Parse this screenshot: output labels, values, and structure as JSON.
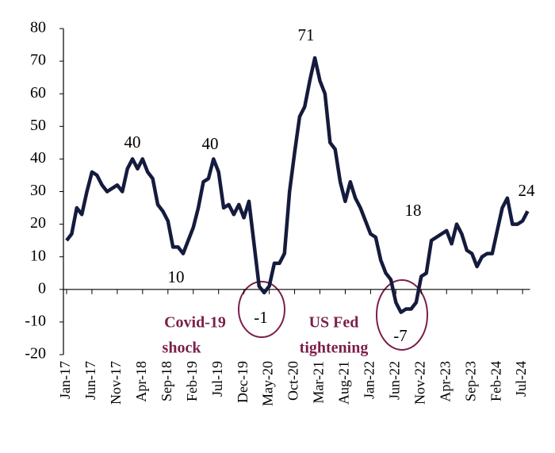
{
  "chart_data": {
    "type": "line",
    "categories": [
      "Jan-17",
      null,
      null,
      null,
      null,
      "Jun-17",
      null,
      null,
      null,
      null,
      "Nov-17",
      null,
      null,
      null,
      null,
      "Apr-18",
      null,
      null,
      null,
      null,
      "Sep-18",
      null,
      null,
      null,
      null,
      "Feb-19",
      null,
      null,
      null,
      null,
      "Jul-19",
      null,
      null,
      null,
      null,
      "Dec-19",
      null,
      null,
      null,
      null,
      "May-20",
      null,
      null,
      null,
      null,
      "Oct-20",
      null,
      null,
      null,
      null,
      "Mar-21",
      null,
      null,
      null,
      null,
      "Aug-21",
      null,
      null,
      null,
      null,
      "Jan-22",
      null,
      null,
      null,
      null,
      "Jun-22",
      null,
      null,
      null,
      null,
      "Nov-22",
      null,
      null,
      null,
      null,
      "Apr-23",
      null,
      null,
      null,
      null,
      "Sep-23",
      null,
      null,
      null,
      null,
      "Feb-24",
      null,
      null,
      null,
      null,
      "Jul-24",
      null
    ],
    "series": [
      {
        "color": "#141b3d",
        "values": [
          15,
          17,
          25,
          23,
          30,
          36,
          35,
          32,
          30,
          31,
          32,
          30,
          37,
          40,
          37,
          40,
          36,
          34,
          26,
          24,
          21,
          13,
          13,
          11,
          15,
          19,
          25,
          33,
          34,
          40,
          36,
          25,
          26,
          23,
          26,
          22,
          27,
          14,
          1,
          -1,
          1,
          8,
          8,
          11,
          30,
          42,
          53,
          56,
          64,
          71,
          64,
          60,
          45,
          43,
          33,
          27,
          33,
          28,
          25,
          21,
          17,
          16,
          9,
          5,
          3,
          -4,
          -7,
          -6,
          -6,
          -4,
          4,
          5,
          15,
          16,
          17,
          18,
          14,
          20,
          17,
          12,
          11,
          7,
          10,
          11,
          11,
          18,
          25,
          28,
          20,
          20,
          21,
          24
        ]
      }
    ],
    "ylim": [
      -20,
      80
    ],
    "yticks": [
      -20,
      -10,
      0,
      10,
      20,
      30,
      40,
      50,
      60,
      70,
      80
    ],
    "annotations": [
      "40",
      "40",
      "10",
      "71",
      "-1",
      "18",
      "-7",
      "24",
      "Covid-19",
      "shock",
      "US Fed",
      "tightening"
    ]
  }
}
